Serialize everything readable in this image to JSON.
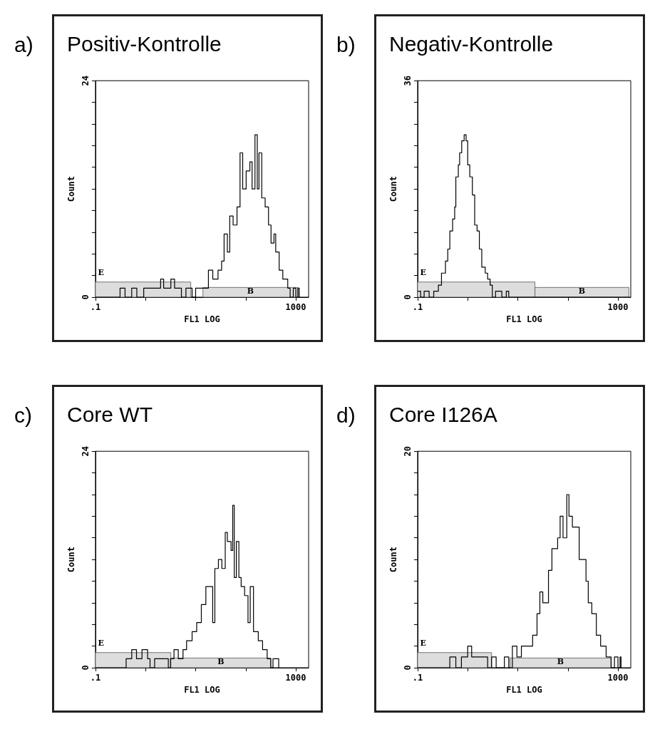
{
  "chart_data": [
    {
      "type": "step",
      "title": "Positiv-Kontrolle",
      "annotations": [
        "a)"
      ],
      "xlabel": "FL1 LOG",
      "ylabel": "Count",
      "log": "x",
      "xlim": [
        0.1,
        1800
      ],
      "xticks": [
        {
          "value": 0.1,
          "label": ".1"
        },
        {
          "value": 1,
          "label": null
        },
        {
          "value": 10,
          "label": null
        },
        {
          "value": 100,
          "label": null
        },
        {
          "value": 1000,
          "label": "1000"
        }
      ],
      "ylim": [
        0,
        24
      ],
      "yticks": [
        0,
        {
          "value": 2.4,
          "label": null
        },
        {
          "value": 4.8,
          "label": null
        },
        {
          "value": 7.2,
          "label": null
        },
        {
          "value": 9.6,
          "label": null
        },
        {
          "value": 12,
          "label": null
        },
        {
          "value": 14.4,
          "label": null
        },
        {
          "value": 16.8,
          "label": null
        },
        {
          "value": 19.2,
          "label": null
        },
        {
          "value": 21.6,
          "label": null
        },
        24
      ],
      "bands": [
        {
          "axis": "x",
          "from": 0.1,
          "to": 8,
          "label": "E"
        },
        {
          "axis": "x",
          "from": 14,
          "to": 1100,
          "label": "B"
        }
      ],
      "series": [
        {
          "color": "#000000",
          "x": [
            0.1,
            0.31,
            0.39,
            0.53,
            0.67,
            0.92,
            1.4,
            2,
            2.3,
            3.2,
            3.8,
            5.2,
            6.4,
            8.5,
            10,
            14,
            18,
            22,
            28,
            33,
            37,
            43,
            48,
            56,
            67,
            77,
            87,
            102,
            121,
            134,
            153,
            170,
            184,
            209,
            244,
            285,
            320,
            367,
            397,
            465,
            550,
            690,
            770,
            890,
            1000,
            1100,
            1170
          ],
          "values": [
            0,
            1,
            0,
            1,
            0,
            1,
            1,
            2,
            1,
            2,
            1,
            0,
            1,
            0,
            1,
            1,
            3,
            2,
            3,
            4,
            7,
            5,
            9,
            8,
            10,
            16,
            12,
            14,
            15,
            12,
            18,
            12,
            16,
            11,
            10,
            8,
            6,
            7,
            5,
            3,
            2,
            1,
            0,
            1,
            0,
            1,
            0
          ]
        }
      ]
    },
    {
      "type": "step",
      "title": "Negativ-Kontrolle",
      "annotations": [
        "b)"
      ],
      "xlabel": "FL1 LOG",
      "ylabel": "Count",
      "log": "x",
      "xlim": [
        0.1,
        1800
      ],
      "xticks": [
        {
          "value": 0.1,
          "label": ".1"
        },
        {
          "value": 1,
          "label": null
        },
        {
          "value": 10,
          "label": null
        },
        {
          "value": 100,
          "label": null
        },
        {
          "value": 1000,
          "label": "1000"
        }
      ],
      "ylim": [
        0,
        36
      ],
      "yticks": [
        0,
        {
          "value": 3.6,
          "label": null
        },
        {
          "value": 7.2,
          "label": null
        },
        {
          "value": 10.8,
          "label": null
        },
        {
          "value": 14.4,
          "label": null
        },
        {
          "value": 18,
          "label": null
        },
        {
          "value": 21.6,
          "label": null
        },
        {
          "value": 25.2,
          "label": null
        },
        {
          "value": 28.8,
          "label": null
        },
        {
          "value": 32.4,
          "label": null
        },
        36
      ],
      "bands": [
        {
          "axis": "x",
          "from": 0.1,
          "to": 22,
          "label": "E"
        },
        {
          "axis": "x",
          "from": 22,
          "to": 1650,
          "label": "B"
        }
      ],
      "series": [
        {
          "color": "#000000",
          "x": [
            0.1,
            0.115,
            0.135,
            0.17,
            0.21,
            0.26,
            0.3,
            0.36,
            0.4,
            0.44,
            0.5,
            0.55,
            0.58,
            0.65,
            0.69,
            0.76,
            0.85,
            0.93,
            1,
            1.1,
            1.24,
            1.38,
            1.54,
            1.71,
            1.91,
            2.24,
            2.5,
            2.8,
            3.1,
            3.6,
            4.8,
            5.9,
            6.6,
            1650
          ],
          "values": [
            1,
            0,
            1,
            0,
            1,
            2,
            4,
            6,
            8,
            11,
            13,
            15,
            20,
            22,
            24,
            26,
            27,
            26,
            22,
            20,
            17,
            12,
            11,
            8,
            5,
            4,
            3,
            2,
            0,
            1,
            0,
            1,
            0,
            0
          ]
        }
      ]
    },
    {
      "type": "step",
      "title": "Core WT",
      "annotations": [
        "c)"
      ],
      "xlabel": "FL1 LOG",
      "ylabel": "Count",
      "log": "x",
      "xlim": [
        0.1,
        1800
      ],
      "xticks": [
        {
          "value": 0.1,
          "label": ".1"
        },
        {
          "value": 1,
          "label": null
        },
        {
          "value": 10,
          "label": null
        },
        {
          "value": 100,
          "label": null
        },
        {
          "value": 1000,
          "label": "1000"
        }
      ],
      "ylim": [
        0,
        24
      ],
      "yticks": [
        0,
        {
          "value": 2.4,
          "label": null
        },
        {
          "value": 4.8,
          "label": null
        },
        {
          "value": 7.2,
          "label": null
        },
        {
          "value": 9.6,
          "label": null
        },
        {
          "value": 12,
          "label": null
        },
        {
          "value": 14.4,
          "label": null
        },
        {
          "value": 16.8,
          "label": null
        },
        {
          "value": 19.2,
          "label": null
        },
        {
          "value": 21.6,
          "label": null
        },
        24
      ],
      "bands": [
        {
          "axis": "x",
          "from": 0.1,
          "to": 3.2,
          "label": "E"
        },
        {
          "axis": "x",
          "from": 3.2,
          "to": 316,
          "label": "B"
        }
      ],
      "series": [
        {
          "color": "#000000",
          "x": [
            0.1,
            0.41,
            0.53,
            0.66,
            0.85,
            1.1,
            1.23,
            1.52,
            2.2,
            2.85,
            3.15,
            3.7,
            4.5,
            5.6,
            6.6,
            8.5,
            10.5,
            13,
            16,
            19.7,
            21.9,
            24.2,
            28.5,
            33.4,
            39,
            43,
            51,
            55,
            59,
            65,
            73,
            81,
            95,
            111,
            123,
            143,
            178,
            217,
            268,
            316,
            350,
            410,
            455
          ],
          "values": [
            0,
            1,
            2,
            1,
            2,
            1,
            0,
            1,
            1,
            0,
            1,
            2,
            1,
            2,
            3,
            4,
            5,
            7,
            9,
            9,
            5,
            11,
            12,
            11,
            15,
            14,
            13,
            18,
            10,
            14,
            10,
            9,
            8,
            5,
            9,
            4,
            3,
            2,
            1,
            0,
            1,
            1,
            0
          ]
        }
      ]
    },
    {
      "type": "step",
      "title": "Core I126A",
      "annotations": [
        "d)"
      ],
      "xlabel": "FL1 LOG",
      "ylabel": "Count",
      "log": "x",
      "xlim": [
        0.1,
        1800
      ],
      "xticks": [
        {
          "value": 0.1,
          "label": ".1"
        },
        {
          "value": 1,
          "label": null
        },
        {
          "value": 10,
          "label": null
        },
        {
          "value": 100,
          "label": null
        },
        {
          "value": 1000,
          "label": "1000"
        }
      ],
      "ylim": [
        0,
        20
      ],
      "yticks": [
        0,
        {
          "value": 2,
          "label": null
        },
        {
          "value": 4,
          "label": null
        },
        {
          "value": 6,
          "label": null
        },
        {
          "value": 8,
          "label": null
        },
        {
          "value": 10,
          "label": null
        },
        {
          "value": 12,
          "label": null
        },
        {
          "value": 14,
          "label": null
        },
        {
          "value": 16,
          "label": null
        },
        {
          "value": 18,
          "label": null
        },
        20
      ],
      "bands": [
        {
          "axis": "x",
          "from": 0.1,
          "to": 3,
          "label": "E"
        },
        {
          "axis": "x",
          "from": 7,
          "to": 724,
          "label": "B"
        }
      ],
      "series": [
        {
          "color": "#000000",
          "x": [
            0.1,
            0.44,
            0.58,
            0.75,
            1,
            1.2,
            1.47,
            2,
            2.5,
            3,
            3.7,
            5.4,
            6.6,
            7.8,
            9.6,
            11.8,
            15.3,
            19.8,
            24.2,
            27.6,
            31.6,
            41,
            48,
            62.5,
            70,
            80,
            95,
            105,
            123,
            144,
            168,
            197,
            230,
            255,
            300,
            370,
            450,
            580,
            730,
            850,
            1000,
            1100,
            1150
          ],
          "values": [
            0,
            1,
            0,
            1,
            2,
            1,
            1,
            1,
            0,
            1,
            0,
            1,
            0,
            2,
            1,
            2,
            2,
            3,
            5,
            7,
            6,
            9,
            11,
            12,
            14,
            12,
            16,
            14,
            13,
            13,
            10,
            10,
            8,
            6,
            5,
            3,
            2,
            1,
            0,
            1,
            0,
            1,
            0
          ]
        }
      ]
    }
  ]
}
